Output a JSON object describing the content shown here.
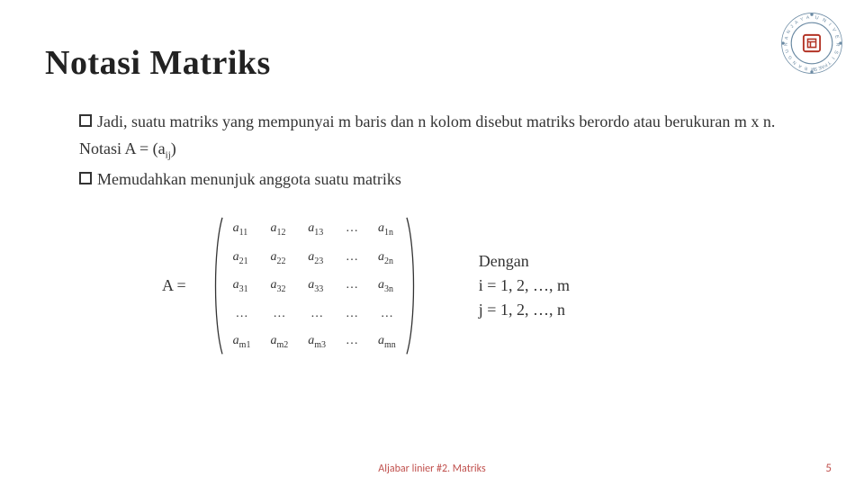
{
  "title": "Notasi Matriks",
  "logo": {
    "outer_text": "UNIVERSITAS • PEMBANGUNAN • JAYA",
    "ring_color": "#6b8aa3",
    "inner_color": "#b33426",
    "dot_color": "#6b8aa3"
  },
  "bullets": [
    "Jadi, suatu matriks yang mempunyai m baris dan n kolom disebut matriks berordo atau berukuran m x n.",
    "Memudahkan menunjuk anggota suatu matriks"
  ],
  "notasi_prefix": "Notasi  A = (a",
  "notasi_sub": "ij",
  "notasi_suffix": ")",
  "equation_label": "A =",
  "matrix": {
    "rows": 5,
    "cols": 5,
    "cells": [
      [
        "a",
        "11",
        "a",
        "12",
        "a",
        "13",
        "…",
        "",
        "a",
        "1n"
      ],
      [
        "a",
        "21",
        "a",
        "22",
        "a",
        "23",
        "…",
        "",
        "a",
        "2n"
      ],
      [
        "a",
        "31",
        "a",
        "32",
        "a",
        "33",
        "…",
        "",
        "a",
        "3n"
      ],
      [
        "…",
        "",
        "…",
        "",
        "…",
        "",
        "…",
        "",
        "…",
        ""
      ],
      [
        "a",
        "m1",
        "a",
        "m2",
        "a",
        "m3",
        "…",
        "",
        "a",
        "mn"
      ]
    ],
    "bracket_color": "#333333"
  },
  "side": {
    "heading": "Dengan",
    "line_i": "i = 1, 2, …, m",
    "line_j": "j = 1, 2, …, n"
  },
  "footer": "Aljabar linier #2. Matriks",
  "page_number": "5",
  "colors": {
    "title": "#222222",
    "text": "#333333",
    "accent": "#c0504d",
    "background": "#ffffff"
  },
  "fonts": {
    "title_family": "Georgia",
    "title_size_pt": 30,
    "body_family": "Georgia",
    "body_size_pt": 14,
    "matrix_size_pt": 11
  }
}
